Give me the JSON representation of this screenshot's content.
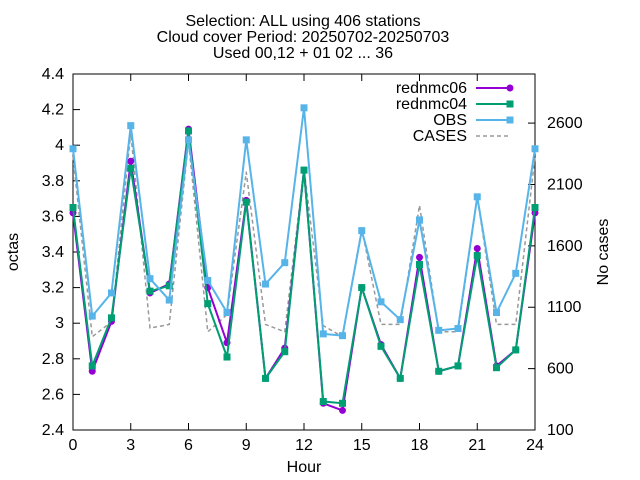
{
  "chart_data": {
    "type": "line",
    "title": [
      "Selection: ALL using   406 stations",
      "Cloud cover   Period: 20250702-20250703",
      "Used 00,12 + 01 02 ... 36"
    ],
    "xlabel": "Hour",
    "ylabel": "octas",
    "y2label": "No cases",
    "xlim": [
      0,
      24
    ],
    "ylim": [
      2.4,
      4.4
    ],
    "y2lim": [
      100,
      3000
    ],
    "xticks": [
      "0",
      "3",
      "6",
      "9",
      "12",
      "15",
      "18",
      "21",
      "24"
    ],
    "yticks": [
      "2.4",
      "2.6",
      "2.8",
      "3",
      "3.2",
      "3.4",
      "3.6",
      "3.8",
      "4",
      "4.2",
      "4.4"
    ],
    "y2ticks": [
      "100",
      "600",
      "1100",
      "1600",
      "2100",
      "2600"
    ],
    "grid": false,
    "legend_position": "top-right",
    "x": [
      0,
      1,
      2,
      3,
      4,
      5,
      6,
      7,
      8,
      9,
      10,
      11,
      12,
      13,
      14,
      15,
      16,
      17,
      18,
      19,
      20,
      21,
      22,
      23,
      24
    ],
    "series": [
      {
        "name": "rednmc06",
        "color": "#9400d3",
        "marker": "circle",
        "values": [
          3.62,
          2.73,
          3.01,
          3.91,
          3.17,
          3.22,
          4.09,
          3.2,
          2.89,
          3.69,
          2.69,
          2.86,
          3.86,
          2.55,
          2.51,
          3.2,
          2.88,
          2.69,
          3.37,
          2.73,
          2.76,
          3.42,
          2.76,
          2.85,
          3.62
        ]
      },
      {
        "name": "rednmc04",
        "color": "#009e73",
        "marker": "square",
        "values": [
          3.65,
          2.76,
          3.03,
          3.87,
          3.18,
          3.21,
          4.08,
          3.11,
          2.81,
          3.68,
          2.69,
          2.84,
          3.86,
          2.56,
          2.55,
          3.2,
          2.87,
          2.69,
          3.33,
          2.73,
          2.76,
          3.38,
          2.75,
          2.85,
          3.65
        ]
      },
      {
        "name": "OBS",
        "color": "#56b4e9",
        "marker": "square",
        "values": [
          3.98,
          3.04,
          3.17,
          4.11,
          3.25,
          3.13,
          4.03,
          3.24,
          3.06,
          4.03,
          3.22,
          3.34,
          4.21,
          2.94,
          2.93,
          3.52,
          3.12,
          3.02,
          3.58,
          2.96,
          2.97,
          3.71,
          3.06,
          3.28,
          3.98
        ]
      },
      {
        "name": "CASES",
        "color": "#999999",
        "dashed": true,
        "axis": "y2",
        "values": [
          2330,
          860,
          980,
          2520,
          930,
          960,
          2450,
          900,
          1040,
          2200,
          960,
          900,
          2230,
          950,
          860,
          1740,
          960,
          960,
          1930,
          900,
          900,
          2000,
          960,
          960,
          2330
        ]
      }
    ]
  }
}
